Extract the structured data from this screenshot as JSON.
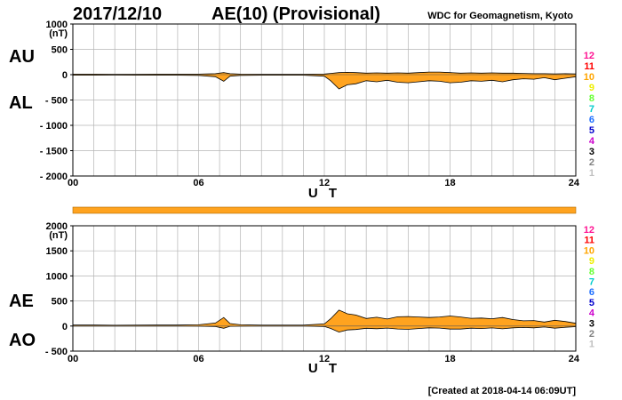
{
  "header": {
    "date": "2017/12/10",
    "title": "AE(10) (Provisional)",
    "org": "WDC for Geomagnetism, Kyoto"
  },
  "footer": {
    "created": "[Created at 2018-04-14 06:09UT]"
  },
  "colors": {
    "fill": "#ffa31f",
    "grid": "#b4b4b4",
    "line": "#000000"
  },
  "station_legend": {
    "labels": [
      "12",
      "11",
      "10",
      "9",
      "8",
      "7",
      "6",
      "5",
      "4",
      "3",
      "2",
      "1"
    ],
    "colors": [
      "#ff1493",
      "#ff0000",
      "#ffa500",
      "#eeee00",
      "#66ff33",
      "#00cccc",
      "#1e6fff",
      "#0000cc",
      "#cc00cc",
      "#000000",
      "#808080",
      "#c0c0c0"
    ]
  },
  "chart_data": [
    {
      "type": "area",
      "panel": "top",
      "left_labels": [
        "AU",
        "AL"
      ],
      "unit": "(nT)",
      "xlabel": "U T",
      "xlim": [
        0,
        24
      ],
      "xticks": [
        "00",
        "06",
        "12",
        "18",
        "24"
      ],
      "ylim": [
        -2000,
        1000
      ],
      "yticks": [
        "1000",
        "500",
        "0",
        "- 500",
        "- 1000",
        "- 1500",
        "- 2000"
      ],
      "x": [
        0,
        1,
        2,
        3,
        4,
        5,
        6,
        6.8,
        7.2,
        7.5,
        8,
        9,
        10,
        11,
        12,
        12.3,
        12.7,
        13.1,
        13.5,
        14,
        14.5,
        15,
        15.5,
        16,
        16.5,
        17,
        17.5,
        18,
        18.5,
        19,
        19.5,
        20,
        20.5,
        21,
        21.5,
        22,
        22.5,
        23,
        23.5,
        24
      ],
      "series": [
        {
          "key": "AU",
          "values": [
            10,
            10,
            8,
            8,
            10,
            10,
            10,
            20,
            40,
            20,
            10,
            8,
            8,
            8,
            12,
            25,
            40,
            45,
            40,
            30,
            35,
            30,
            35,
            30,
            40,
            50,
            50,
            40,
            30,
            35,
            30,
            35,
            30,
            30,
            25,
            20,
            20,
            15,
            20,
            15
          ]
        },
        {
          "key": "AL",
          "values": [
            -10,
            -10,
            -8,
            -10,
            -10,
            -10,
            -15,
            -40,
            -130,
            -30,
            -15,
            -10,
            -10,
            -10,
            -30,
            -120,
            -280,
            -200,
            -180,
            -120,
            -140,
            -110,
            -150,
            -160,
            -140,
            -120,
            -130,
            -160,
            -150,
            -120,
            -130,
            -110,
            -140,
            -100,
            -80,
            -90,
            -60,
            -100,
            -70,
            -40
          ]
        }
      ]
    },
    {
      "type": "area",
      "panel": "bottom",
      "left_labels": [
        "AE",
        "AO"
      ],
      "unit": "(nT)",
      "xlabel": "U T",
      "xlim": [
        0,
        24
      ],
      "xticks": [
        "00",
        "06",
        "12",
        "18",
        "24"
      ],
      "ylim": [
        -500,
        2000
      ],
      "yticks": [
        "2000",
        "1500",
        "1000",
        "500",
        "0",
        "- 500"
      ],
      "x": [
        0,
        1,
        2,
        3,
        4,
        5,
        6,
        6.8,
        7.2,
        7.5,
        8,
        9,
        10,
        11,
        12,
        12.3,
        12.7,
        13.1,
        13.5,
        14,
        14.5,
        15,
        15.5,
        16,
        16.5,
        17,
        17.5,
        18,
        18.5,
        19,
        19.5,
        20,
        20.5,
        21,
        21.5,
        22,
        22.5,
        23,
        23.5,
        24
      ],
      "series": [
        {
          "key": "AE",
          "values": [
            20,
            20,
            16,
            18,
            20,
            20,
            25,
            60,
            170,
            50,
            25,
            18,
            18,
            18,
            42,
            145,
            320,
            245,
            220,
            150,
            175,
            140,
            185,
            190,
            180,
            170,
            180,
            200,
            180,
            155,
            160,
            145,
            170,
            130,
            105,
            110,
            80,
            115,
            90,
            55
          ]
        },
        {
          "key": "AO",
          "values": [
            0,
            0,
            0,
            -1,
            0,
            0,
            -3,
            -10,
            -45,
            -5,
            -3,
            -1,
            -1,
            -1,
            -9,
            -48,
            -120,
            -78,
            -70,
            -45,
            -53,
            -40,
            -58,
            -65,
            -50,
            -35,
            -40,
            -60,
            -60,
            -43,
            -50,
            -38,
            -55,
            -35,
            -28,
            -35,
            -20,
            -43,
            -25,
            -13
          ]
        }
      ]
    }
  ]
}
